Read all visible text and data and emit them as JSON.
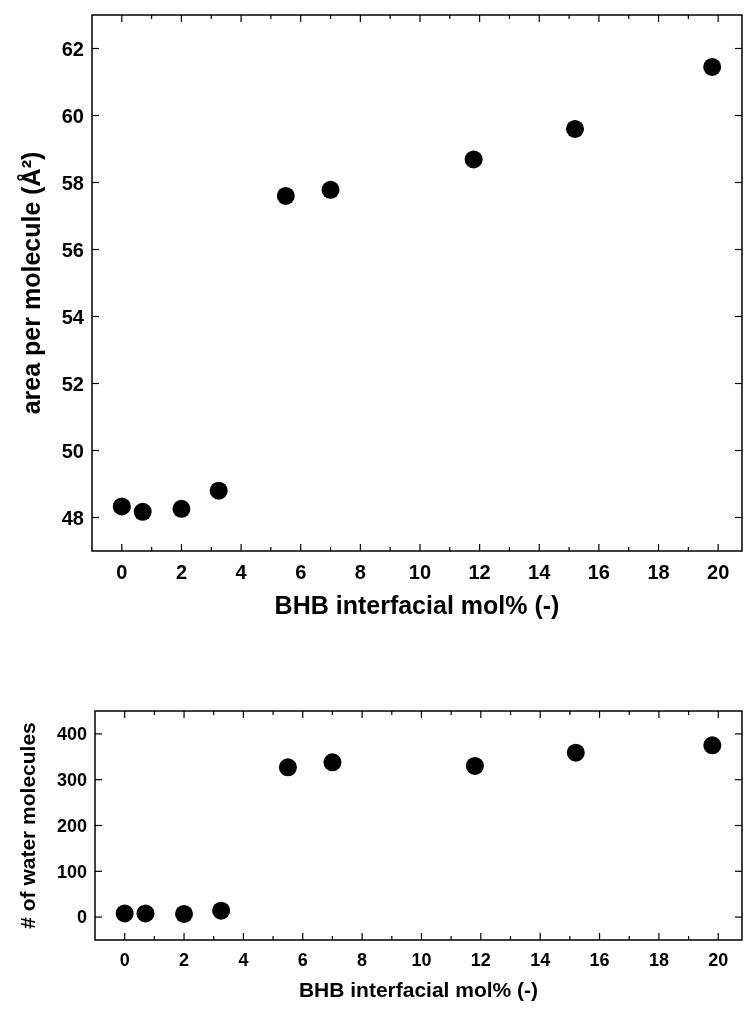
{
  "chart_data": [
    {
      "type": "scatter",
      "xlabel": "BHB interfacial mol% (-)",
      "ylabel": "area per molecule (Å²)",
      "marker": "circle",
      "grid": false,
      "x": [
        0,
        0.7,
        2.0,
        3.25,
        5.5,
        7.0,
        11.8,
        15.2,
        19.8
      ],
      "series": [
        {
          "color": "#000000",
          "values": [
            48.33,
            48.17,
            48.26,
            48.8,
            57.6,
            57.78,
            58.69,
            59.6,
            61.45
          ]
        }
      ],
      "xlim": [
        -1,
        20.8
      ],
      "ylim": [
        47,
        63
      ],
      "xticks": [
        0,
        {
          "value": 1,
          "label": null
        },
        2,
        {
          "value": 3,
          "label": null
        },
        4,
        {
          "value": 5,
          "label": null
        },
        6,
        {
          "value": 7,
          "label": null
        },
        8,
        {
          "value": 9,
          "label": null
        },
        10,
        {
          "value": 11,
          "label": null
        },
        12,
        {
          "value": 13,
          "label": null
        },
        14,
        {
          "value": 15,
          "label": null
        },
        16,
        {
          "value": 17,
          "label": null
        },
        18,
        {
          "value": 19,
          "label": null
        },
        20
      ],
      "yticks": [
        48,
        50,
        52,
        54,
        56,
        58,
        60,
        62
      ]
    },
    {
      "type": "scatter",
      "xlabel": "BHB interfacial mol% (-)",
      "ylabel": "# of water molecules",
      "marker": "circle",
      "grid": false,
      "x": [
        0,
        0.7,
        2.0,
        3.25,
        5.5,
        7.0,
        11.8,
        15.2,
        19.8
      ],
      "series": [
        {
          "color": "#000000",
          "values": [
            8,
            8,
            7,
            14,
            327,
            338,
            330,
            359,
            375
          ]
        }
      ],
      "xlim": [
        -1,
        20.8
      ],
      "ylim": [
        -50,
        450
      ],
      "xticks": [
        0,
        {
          "value": 1,
          "label": null
        },
        2,
        {
          "value": 3,
          "label": null
        },
        4,
        {
          "value": 5,
          "label": null
        },
        6,
        {
          "value": 7,
          "label": null
        },
        8,
        {
          "value": 9,
          "label": null
        },
        10,
        {
          "value": 11,
          "label": null
        },
        12,
        {
          "value": 13,
          "label": null
        },
        14,
        {
          "value": 15,
          "label": null
        },
        16,
        {
          "value": 17,
          "label": null
        },
        18,
        {
          "value": 19,
          "label": null
        },
        20
      ],
      "yticks": [
        0,
        100,
        200,
        300,
        400
      ]
    }
  ]
}
